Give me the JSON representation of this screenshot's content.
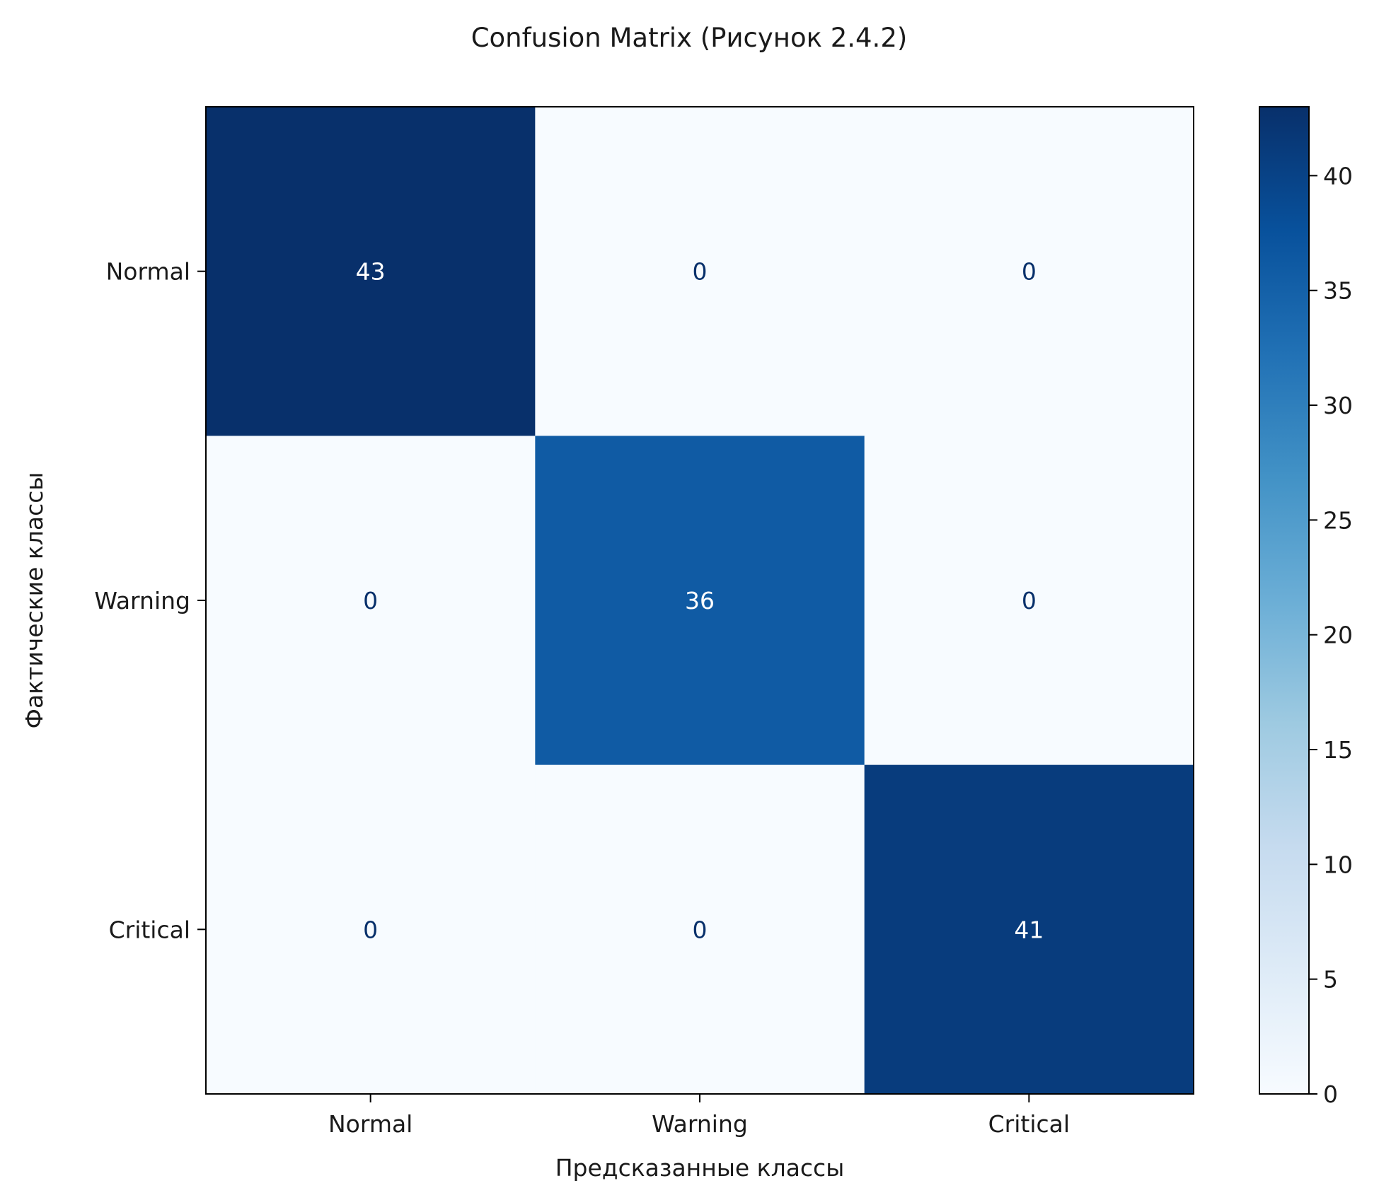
{
  "chart_data": {
    "type": "heatmap",
    "title": "Confusion Matrix (Рисунок 2.4.2)",
    "xlabel": "Предсказанные классы",
    "ylabel": "Фактические классы",
    "x_categories": [
      "Normal",
      "Warning",
      "Critical"
    ],
    "y_categories": [
      "Normal",
      "Warning",
      "Critical"
    ],
    "matrix": [
      [
        43,
        0,
        0
      ],
      [
        0,
        36,
        0
      ],
      [
        0,
        0,
        41
      ]
    ],
    "colormap": "Blues",
    "colorbar": {
      "range": [
        0,
        43
      ],
      "ticks": [
        0,
        5,
        10,
        15,
        20,
        25,
        30,
        35,
        40
      ]
    },
    "colors": {
      "low": "#f7fbff",
      "high": "#08306b",
      "text_dark": "#08306b",
      "text_light": "#ffffff"
    }
  }
}
